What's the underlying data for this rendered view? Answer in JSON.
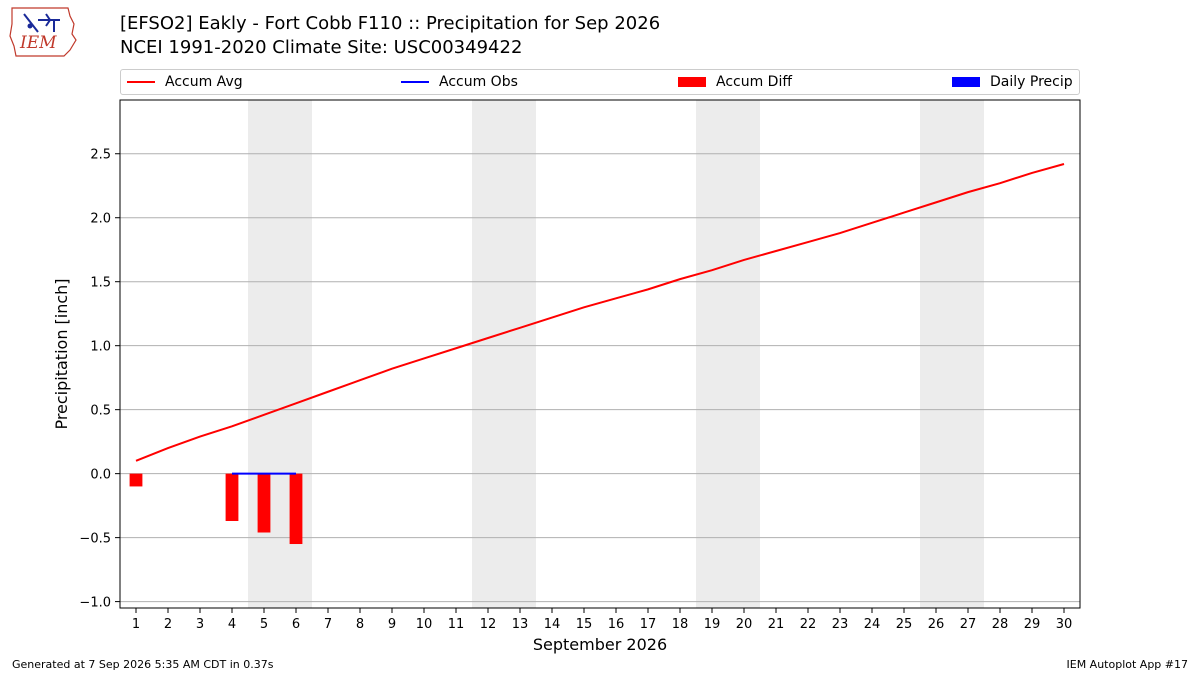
{
  "header": {
    "title_line1": "[EFSO2] Eakly - Fort Cobb F110 :: Precipitation for Sep 2026",
    "title_line2": "NCEI 1991-2020 Climate Site: USC00349422",
    "logo_text": "IEM"
  },
  "legend": {
    "accum_avg": "Accum Avg",
    "accum_obs": "Accum Obs",
    "accum_diff": "Accum Diff",
    "daily_precip": "Daily Precip"
  },
  "footer": {
    "generated": "Generated at 7 Sep 2026 5:35 AM CDT in 0.37s",
    "app": "IEM Autoplot App #17"
  },
  "colors": {
    "accum_avg": "#ff0000",
    "accum_obs": "#0000ff",
    "accum_diff": "#ff0000",
    "daily_precip": "#0000ff",
    "weekend_band": "#ececec",
    "grid": "#b0b0b0"
  },
  "chart_data": {
    "type": "line",
    "xlabel": "September 2026",
    "ylabel": "Precipitation [inch]",
    "x": [
      1,
      2,
      3,
      4,
      5,
      6,
      7,
      8,
      9,
      10,
      11,
      12,
      13,
      14,
      15,
      16,
      17,
      18,
      19,
      20,
      21,
      22,
      23,
      24,
      25,
      26,
      27,
      28,
      29,
      30
    ],
    "xlim": [
      0.5,
      30.5
    ],
    "ylim": [
      -1.05,
      2.92
    ],
    "yticks": [
      -1.0,
      -0.5,
      0.0,
      0.5,
      1.0,
      1.5,
      2.0,
      2.5
    ],
    "ytick_labels": [
      "−1.0",
      "−0.5",
      "0.0",
      "0.5",
      "1.0",
      "1.5",
      "2.0",
      "2.5"
    ],
    "grid": true,
    "legend_position": "top",
    "weekend_bands": [
      [
        4.5,
        6.5
      ],
      [
        11.5,
        13.5
      ],
      [
        18.5,
        20.5
      ],
      [
        25.5,
        27.5
      ]
    ],
    "series": [
      {
        "name": "Accum Avg",
        "kind": "line",
        "values": [
          0.1,
          0.2,
          0.29,
          0.37,
          0.46,
          0.55,
          0.64,
          0.73,
          0.82,
          0.9,
          0.98,
          1.06,
          1.14,
          1.22,
          1.3,
          1.37,
          1.44,
          1.52,
          1.59,
          1.67,
          1.74,
          1.81,
          1.88,
          1.96,
          2.04,
          2.12,
          2.2,
          2.27,
          2.35,
          2.42
        ]
      },
      {
        "name": "Accum Obs",
        "kind": "line",
        "x": [
          4,
          5,
          6
        ],
        "values": [
          0.0,
          0.0,
          0.0
        ]
      },
      {
        "name": "Accum Diff",
        "kind": "bar",
        "x": [
          1,
          4,
          5,
          6
        ],
        "values": [
          -0.1,
          -0.37,
          -0.46,
          -0.55
        ]
      },
      {
        "name": "Daily Precip",
        "kind": "bar",
        "x": [],
        "values": []
      }
    ]
  }
}
